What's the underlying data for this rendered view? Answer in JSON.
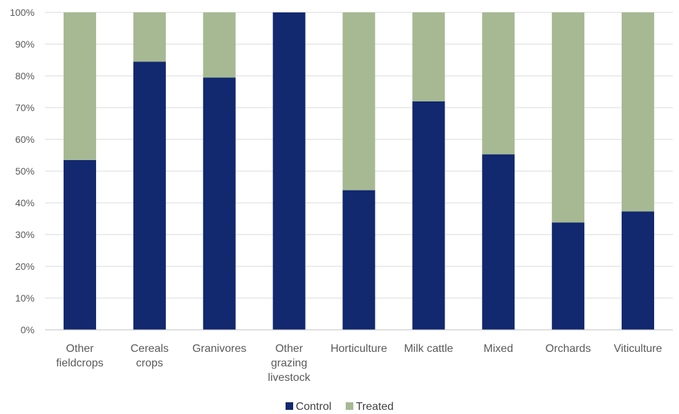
{
  "chart_data": {
    "type": "bar",
    "stacked": true,
    "categories": [
      "Other fieldcrops",
      "Cereals crops",
      "Granivores",
      "Other grazing livestock",
      "Horticulture",
      "Milk cattle",
      "Mixed",
      "Orchards",
      "Viticulture"
    ],
    "category_lines": [
      [
        "Other",
        "fieldcrops"
      ],
      [
        "Cereals",
        "crops"
      ],
      [
        "Granivores"
      ],
      [
        "Other",
        "grazing",
        "livestock"
      ],
      [
        "Horticulture"
      ],
      [
        "Milk cattle"
      ],
      [
        "Mixed"
      ],
      [
        "Orchards"
      ],
      [
        "Viticulture"
      ]
    ],
    "series": [
      {
        "name": "Control",
        "color": "#12286f",
        "values": [
          53.5,
          84.5,
          79.5,
          100,
          44,
          72,
          55.3,
          33.8,
          37.3
        ]
      },
      {
        "name": "Treated",
        "color": "#a6b993",
        "values": [
          46.5,
          15.5,
          20.5,
          0,
          56,
          28,
          44.7,
          66.2,
          62.7
        ]
      }
    ],
    "ylim": [
      0,
      100
    ],
    "yticks": [
      "0%",
      "10%",
      "20%",
      "30%",
      "40%",
      "50%",
      "60%",
      "70%",
      "80%",
      "90%",
      "100%"
    ],
    "gridlines": true,
    "legend_position": "bottom",
    "title": "",
    "xlabel": "",
    "ylabel": ""
  }
}
